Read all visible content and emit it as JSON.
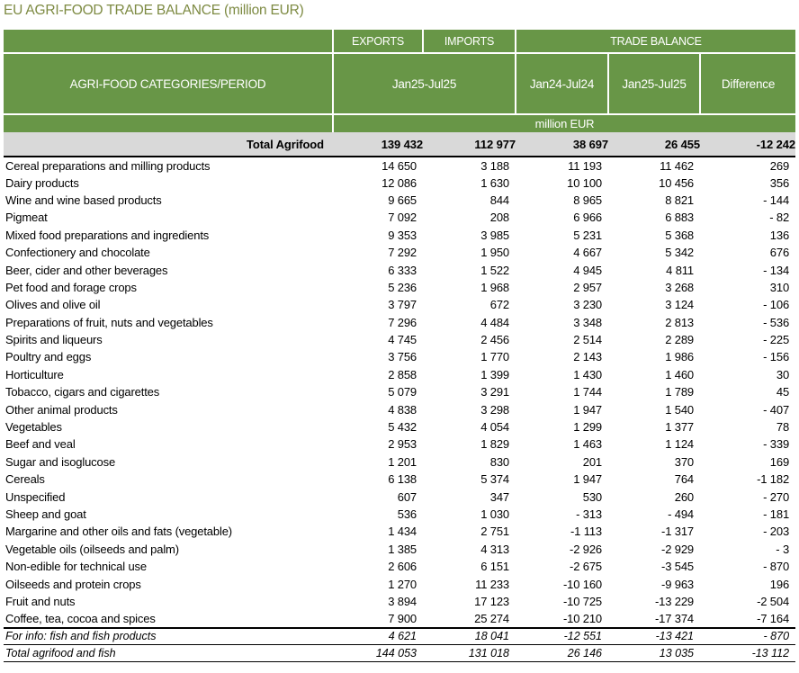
{
  "title": "EU AGRI-FOOD TRADE BALANCE (million EUR)",
  "colors": {
    "header_green": "#689647",
    "title_olive": "#7d8a42",
    "total_row_gray": "#d9d9d9",
    "header_text": "#ffffff",
    "body_text": "#000000"
  },
  "table": {
    "header": {
      "categories_label": "AGRI-FOOD CATEGORIES/PERIOD",
      "exports": "EXPORTS",
      "imports": "IMPORTS",
      "trade_balance": "TRADE BALANCE",
      "exports_imports_period": "Jan25-Jul25",
      "trade_balance_period_1": "Jan24-Jul24",
      "trade_balance_period_2": "Jan25-Jul25",
      "difference": "Difference",
      "unit": "million EUR"
    },
    "total_row": {
      "label": "Total Agrifood",
      "values": [
        "139 432",
        "112 977",
        "38 697",
        "26 455",
        "-12 242"
      ]
    },
    "rows": [
      {
        "label": "Cereal preparations and milling products",
        "values": [
          "14 650",
          "3 188",
          "11 193",
          "11 462",
          "269"
        ]
      },
      {
        "label": "Dairy products",
        "values": [
          "12 086",
          "1 630",
          "10 100",
          "10 456",
          "356"
        ]
      },
      {
        "label": "Wine and wine based products",
        "values": [
          "9 665",
          "844",
          "8 965",
          "8 821",
          "- 144"
        ]
      },
      {
        "label": "Pigmeat",
        "values": [
          "7 092",
          "208",
          "6 966",
          "6 883",
          "- 82"
        ]
      },
      {
        "label": "Mixed food preparations and ingredients",
        "values": [
          "9 353",
          "3 985",
          "5 231",
          "5 368",
          "136"
        ]
      },
      {
        "label": "Confectionery and chocolate",
        "values": [
          "7 292",
          "1 950",
          "4 667",
          "5 342",
          "676"
        ]
      },
      {
        "label": "Beer, cider and other beverages",
        "values": [
          "6 333",
          "1 522",
          "4 945",
          "4 811",
          "- 134"
        ]
      },
      {
        "label": "Pet food and forage crops",
        "values": [
          "5 236",
          "1 968",
          "2 957",
          "3 268",
          "310"
        ]
      },
      {
        "label": "Olives and olive oil",
        "values": [
          "3 797",
          "672",
          "3 230",
          "3 124",
          "- 106"
        ]
      },
      {
        "label": "Preparations of fruit, nuts and vegetables",
        "values": [
          "7 296",
          "4 484",
          "3 348",
          "2 813",
          "- 536"
        ]
      },
      {
        "label": "Spirits and liqueurs",
        "values": [
          "4 745",
          "2 456",
          "2 514",
          "2 289",
          "- 225"
        ]
      },
      {
        "label": "Poultry and eggs",
        "values": [
          "3 756",
          "1 770",
          "2 143",
          "1 986",
          "- 156"
        ]
      },
      {
        "label": "Horticulture",
        "values": [
          "2 858",
          "1 399",
          "1 430",
          "1 460",
          "30"
        ]
      },
      {
        "label": "Tobacco, cigars and cigarettes",
        "values": [
          "5 079",
          "3 291",
          "1 744",
          "1 789",
          "45"
        ]
      },
      {
        "label": "Other animal products",
        "values": [
          "4 838",
          "3 298",
          "1 947",
          "1 540",
          "- 407"
        ]
      },
      {
        "label": "Vegetables",
        "values": [
          "5 432",
          "4 054",
          "1 299",
          "1 377",
          "78"
        ]
      },
      {
        "label": "Beef and veal",
        "values": [
          "2 953",
          "1 829",
          "1 463",
          "1 124",
          "- 339"
        ]
      },
      {
        "label": "Sugar and isoglucose",
        "values": [
          "1 201",
          "830",
          "201",
          "370",
          "169"
        ]
      },
      {
        "label": "Cereals",
        "values": [
          "6 138",
          "5 374",
          "1 947",
          "764",
          "-1 182"
        ]
      },
      {
        "label": "Unspecified",
        "values": [
          "607",
          "347",
          "530",
          "260",
          "- 270"
        ]
      },
      {
        "label": "Sheep and goat",
        "values": [
          "536",
          "1 030",
          "- 313",
          "- 494",
          "- 181"
        ]
      },
      {
        "label": "Margarine and other oils and fats (vegetable)",
        "values": [
          "1 434",
          "2 751",
          "-1 113",
          "-1 317",
          "- 203"
        ]
      },
      {
        "label": "Vegetable oils (oilseeds and palm)",
        "values": [
          "1 385",
          "4 313",
          "-2 926",
          "-2 929",
          "- 3"
        ]
      },
      {
        "label": "Non-edible for technical use",
        "values": [
          "2 606",
          "6 151",
          "-2 675",
          "-3 545",
          "- 870"
        ]
      },
      {
        "label": "Oilseeds and protein crops",
        "values": [
          "1 270",
          "11 233",
          "-10 160",
          "-9 963",
          "196"
        ]
      },
      {
        "label": "Fruit and nuts",
        "values": [
          "3 894",
          "17 123",
          "-10 725",
          "-13 229",
          "-2 504"
        ]
      },
      {
        "label": "Coffee, tea, cocoa and spices",
        "values": [
          "7 900",
          "25 274",
          "-10 210",
          "-17 374",
          "-7 164"
        ]
      }
    ],
    "footer_rows": [
      {
        "label": "For info: fish and fish products",
        "values": [
          "4 621",
          "18 041",
          "-12 551",
          "-13 421",
          "- 870"
        ]
      },
      {
        "label": "Total agrifood and fish",
        "values": [
          "144 053",
          "131 018",
          "26 146",
          "13 035",
          "-13 112"
        ]
      }
    ]
  }
}
